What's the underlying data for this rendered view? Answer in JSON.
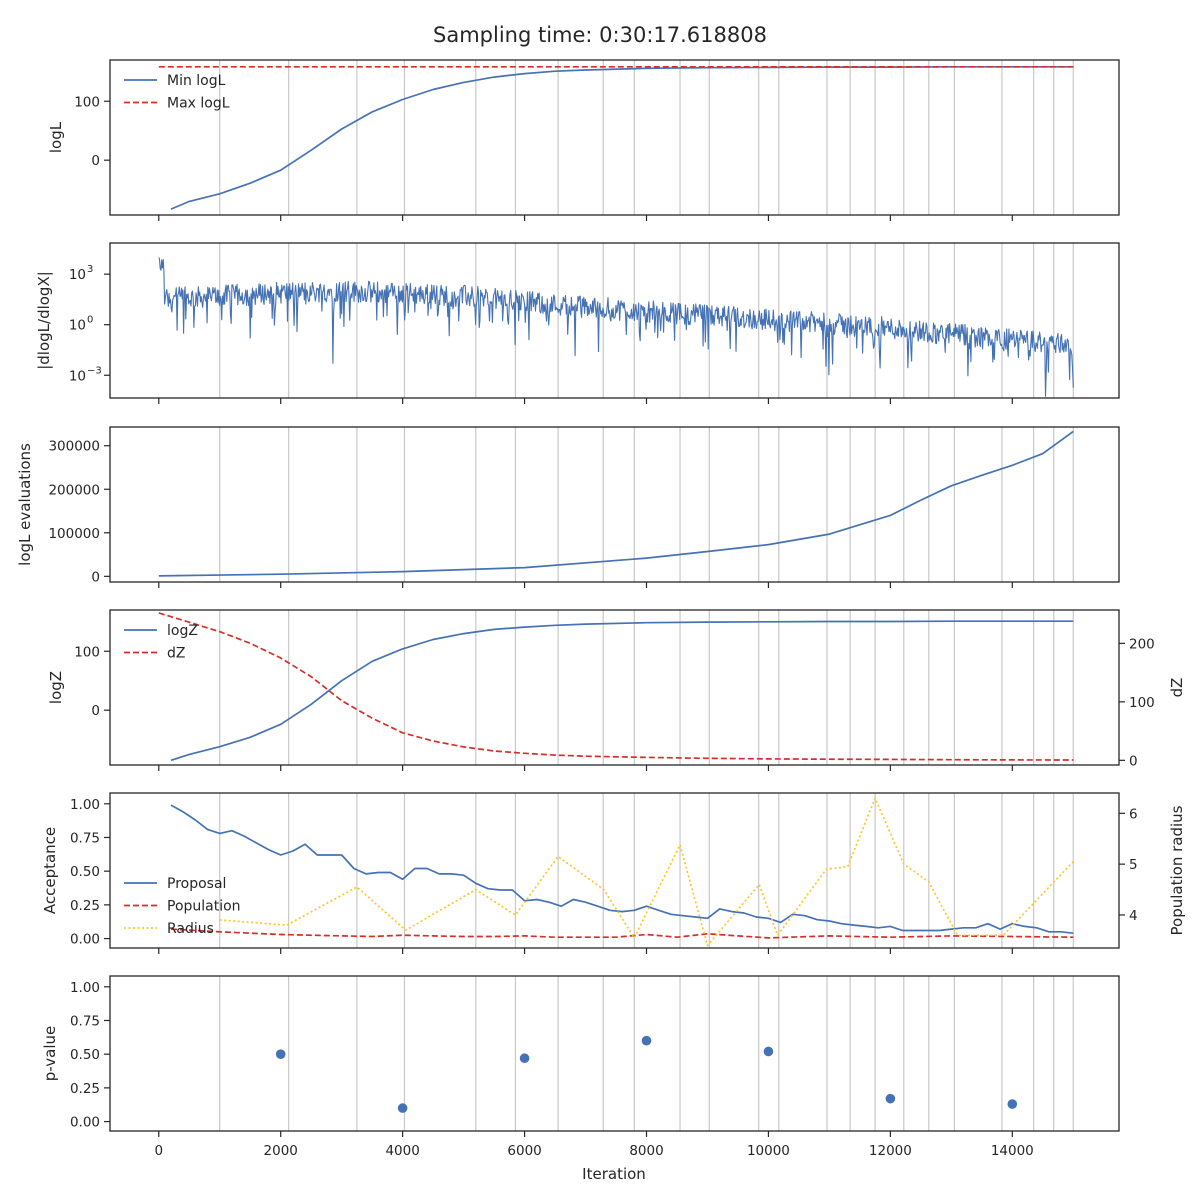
{
  "figure": {
    "title": "Sampling time: 0:30:17.618808",
    "xlabel": "Iteration",
    "xlim": [
      -800,
      15750
    ],
    "xticks": [
      0,
      2000,
      4000,
      6000,
      8000,
      10000,
      12000,
      14000
    ],
    "xtick_labels": [
      "0",
      "2000",
      "4000",
      "6000",
      "8000",
      "10000",
      "12000",
      "14000"
    ],
    "vlines": [
      1000,
      2130,
      3250,
      4030,
      5200,
      5850,
      6550,
      7290,
      7800,
      8550,
      9030,
      9840,
      10170,
      10960,
      11340,
      11750,
      12220,
      12630,
      13050,
      13830,
      14350,
      14680,
      15000
    ],
    "colors": {
      "blue": "#4472b4",
      "red": "#d62f2a",
      "gold": "#fbc52b",
      "grid": "#c8c8c8",
      "frame": "#262626"
    }
  },
  "chart_data": [
    {
      "id": "logl",
      "type": "line",
      "ylabel": "logL",
      "ylim": [
        -93,
        170
      ],
      "scale": "linear",
      "yticks": [
        0,
        100
      ],
      "ytick_labels": [
        "0",
        "100"
      ],
      "legend": "top-left",
      "series": [
        {
          "name": "Min logL",
          "style": "solid",
          "color": "#4472b4",
          "x": [
            200,
            500,
            1000,
            1500,
            2000,
            2500,
            3000,
            3500,
            4000,
            4500,
            5000,
            5500,
            6000,
            6500,
            7000,
            8000,
            9000,
            10000,
            11000,
            12000,
            13000,
            14000,
            15000
          ],
          "y": [
            -83,
            -70,
            -57,
            -39,
            -17,
            17,
            53,
            82,
            103,
            120,
            132,
            141,
            147,
            151,
            153,
            156,
            157,
            157.5,
            158,
            158,
            158.5,
            158.5,
            158.5
          ]
        },
        {
          "name": "Max logL",
          "style": "dashed",
          "color": "#d62f2a",
          "x": [
            0,
            15000
          ],
          "y": [
            158.5,
            158.5
          ]
        }
      ]
    },
    {
      "id": "dlogl",
      "type": "line",
      "ylabel": "|dlogL/dlogX|",
      "ylim": [
        -4.35,
        4.85
      ],
      "scale": "log",
      "yticks": [
        -3,
        0,
        3
      ],
      "ytick_labels": [
        "10",
        "10",
        "10"
      ],
      "ytick_exponents": [
        "−3",
        "0",
        "3"
      ],
      "series": [
        {
          "name": "",
          "style": "noisy",
          "color": "#4472b4",
          "x": [
            0,
            100,
            500,
            1000,
            2000,
            3000,
            4000,
            5000,
            6000,
            7000,
            8000,
            9000,
            10000,
            11000,
            12000,
            13000,
            14000,
            15000
          ],
          "log10_center": [
            3.3,
            1.6,
            1.6,
            1.7,
            1.9,
            2.0,
            1.85,
            1.7,
            1.35,
            1.05,
            0.8,
            0.55,
            0.3,
            0.05,
            -0.2,
            -0.55,
            -0.9,
            -1.15
          ]
        }
      ]
    },
    {
      "id": "evals",
      "type": "line",
      "ylabel": "logL evaluations",
      "ylim": [
        -13000,
        343000
      ],
      "scale": "linear",
      "yticks": [
        0,
        100000,
        200000,
        300000
      ],
      "ytick_labels": [
        "0",
        "100000",
        "200000",
        "300000"
      ],
      "series": [
        {
          "name": "",
          "style": "solid",
          "color": "#4472b4",
          "x": [
            0,
            2000,
            4000,
            6000,
            8000,
            9000,
            10000,
            11000,
            12000,
            12500,
            13000,
            13500,
            14000,
            14500,
            15000
          ],
          "y": [
            1000,
            5000,
            11000,
            20000,
            42000,
            57000,
            73000,
            97000,
            140000,
            175000,
            208000,
            232000,
            255000,
            282000,
            333000
          ]
        }
      ]
    },
    {
      "id": "logz",
      "type": "line",
      "ylabel": "logZ",
      "ylim": [
        -93,
        170
      ],
      "scale": "linear",
      "yticks": [
        0,
        100
      ],
      "ytick_labels": [
        "0",
        "100"
      ],
      "y2label": "dZ",
      "y2lim": [
        -8,
        257
      ],
      "y2ticks": [
        0,
        100,
        200
      ],
      "y2tick_labels": [
        "0",
        "100",
        "200"
      ],
      "legend": "top-left",
      "series": [
        {
          "name": "logZ",
          "axis": "left",
          "style": "solid",
          "color": "#4472b4",
          "x": [
            200,
            500,
            1000,
            1500,
            2000,
            2500,
            3000,
            3500,
            4000,
            4500,
            5000,
            5500,
            6000,
            6500,
            7000,
            8000,
            9000,
            10000,
            11000,
            12000,
            13000,
            14000,
            15000
          ],
          "y": [
            -85,
            -75,
            -62,
            -46,
            -24,
            10,
            50,
            83,
            104,
            120,
            130,
            137,
            141,
            144,
            146,
            148.5,
            149.5,
            150,
            150.5,
            150.5,
            151,
            151,
            151
          ]
        },
        {
          "name": "dZ",
          "axis": "right",
          "style": "dashed",
          "color": "#d62f2a",
          "x": [
            0,
            500,
            1000,
            1500,
            2000,
            2500,
            3000,
            3500,
            4000,
            4500,
            5000,
            5500,
            6000,
            6500,
            7000,
            8000,
            9000,
            10000,
            11000,
            12000,
            13000,
            14000,
            15000
          ],
          "y": [
            252,
            236,
            220,
            200,
            175,
            143,
            102,
            72,
            47,
            33,
            23,
            16,
            12,
            9,
            7,
            5,
            3.5,
            2.5,
            2,
            1.5,
            1,
            0.7,
            0.5
          ]
        }
      ]
    },
    {
      "id": "accept",
      "type": "line",
      "ylabel": "Acceptance",
      "ylim": [
        -0.07,
        1.08
      ],
      "scale": "linear",
      "yticks": [
        0,
        0.25,
        0.5,
        0.75,
        1.0
      ],
      "ytick_labels": [
        "0.00",
        "0.25",
        "0.50",
        "0.75",
        "1.00"
      ],
      "y2label": "Population radius",
      "y2lim": [
        3.35,
        6.4
      ],
      "y2ticks": [
        4,
        5,
        6
      ],
      "y2tick_labels": [
        "4",
        "5",
        "6"
      ],
      "legend": "center-left",
      "series": [
        {
          "name": "Proposal",
          "axis": "left",
          "style": "solid",
          "color": "#4472b4",
          "x": [
            200,
            400,
            600,
            800,
            1000,
            1200,
            1400,
            1600,
            1800,
            2000,
            2200,
            2400,
            2600,
            2800,
            3000,
            3200,
            3400,
            3600,
            3800,
            4000,
            4200,
            4400,
            4600,
            4800,
            5000,
            5200,
            5400,
            5600,
            5800,
            6000,
            6200,
            6400,
            6600,
            6800,
            7000,
            7200,
            7400,
            7600,
            7800,
            8000,
            8200,
            8400,
            8600,
            8800,
            9000,
            9200,
            9400,
            9600,
            9800,
            10000,
            10200,
            10400,
            10600,
            10800,
            11000,
            11200,
            11400,
            11600,
            11800,
            12000,
            12200,
            12400,
            12600,
            12800,
            13000,
            13200,
            13400,
            13600,
            13800,
            14000,
            14200,
            14400,
            14600,
            14800,
            15000
          ],
          "y": [
            0.99,
            0.94,
            0.88,
            0.81,
            0.78,
            0.8,
            0.76,
            0.71,
            0.66,
            0.62,
            0.65,
            0.7,
            0.62,
            0.62,
            0.62,
            0.52,
            0.48,
            0.49,
            0.49,
            0.44,
            0.52,
            0.52,
            0.48,
            0.48,
            0.47,
            0.41,
            0.37,
            0.36,
            0.36,
            0.28,
            0.29,
            0.27,
            0.24,
            0.29,
            0.27,
            0.24,
            0.21,
            0.2,
            0.21,
            0.24,
            0.21,
            0.18,
            0.17,
            0.16,
            0.15,
            0.22,
            0.2,
            0.19,
            0.16,
            0.15,
            0.12,
            0.18,
            0.17,
            0.14,
            0.13,
            0.11,
            0.1,
            0.09,
            0.08,
            0.09,
            0.06,
            0.06,
            0.06,
            0.06,
            0.07,
            0.08,
            0.08,
            0.11,
            0.07,
            0.11,
            0.09,
            0.08,
            0.05,
            0.05,
            0.04
          ]
        },
        {
          "name": "Population",
          "axis": "left",
          "style": "dashed",
          "color": "#d62f2a",
          "x": [
            200,
            1000,
            2000,
            3000,
            3500,
            4000,
            4500,
            5000,
            5500,
            6000,
            6500,
            7000,
            7500,
            8000,
            8500,
            9000,
            9500,
            10000,
            11000,
            12000,
            13000,
            14000,
            15000
          ],
          "y": [
            0.07,
            0.05,
            0.03,
            0.02,
            0.015,
            0.025,
            0.02,
            0.015,
            0.015,
            0.02,
            0.01,
            0.01,
            0.01,
            0.03,
            0.01,
            0.035,
            0.02,
            0.005,
            0.02,
            0.01,
            0.02,
            0.015,
            0.01
          ]
        },
        {
          "name": "Radius",
          "axis": "right",
          "style": "dotted",
          "color": "#fbc52b",
          "x": [
            1000,
            2100,
            3250,
            4050,
            5200,
            5850,
            6550,
            7300,
            7800,
            8550,
            9000,
            9850,
            10150,
            10950,
            11300,
            11750,
            12220,
            12630,
            13100,
            13850,
            15000
          ],
          "y": [
            3.9,
            3.8,
            4.55,
            3.7,
            4.5,
            4.0,
            5.15,
            4.5,
            3.55,
            5.38,
            3.4,
            4.6,
            3.6,
            4.9,
            4.95,
            6.3,
            5.0,
            4.65,
            3.6,
            3.6,
            5.05
          ]
        }
      ]
    },
    {
      "id": "pvalue",
      "type": "scatter",
      "ylabel": "p-value",
      "ylim": [
        -0.07,
        1.08
      ],
      "scale": "linear",
      "yticks": [
        0,
        0.25,
        0.5,
        0.75,
        1.0
      ],
      "ytick_labels": [
        "0.00",
        "0.25",
        "0.50",
        "0.75",
        "1.00"
      ],
      "series": [
        {
          "name": "",
          "style": "markers",
          "color": "#4472b4",
          "x": [
            2000,
            4000,
            6000,
            8000,
            10000,
            12000,
            14000
          ],
          "y": [
            0.5,
            0.1,
            0.47,
            0.6,
            0.52,
            0.17,
            0.13
          ]
        }
      ]
    }
  ]
}
